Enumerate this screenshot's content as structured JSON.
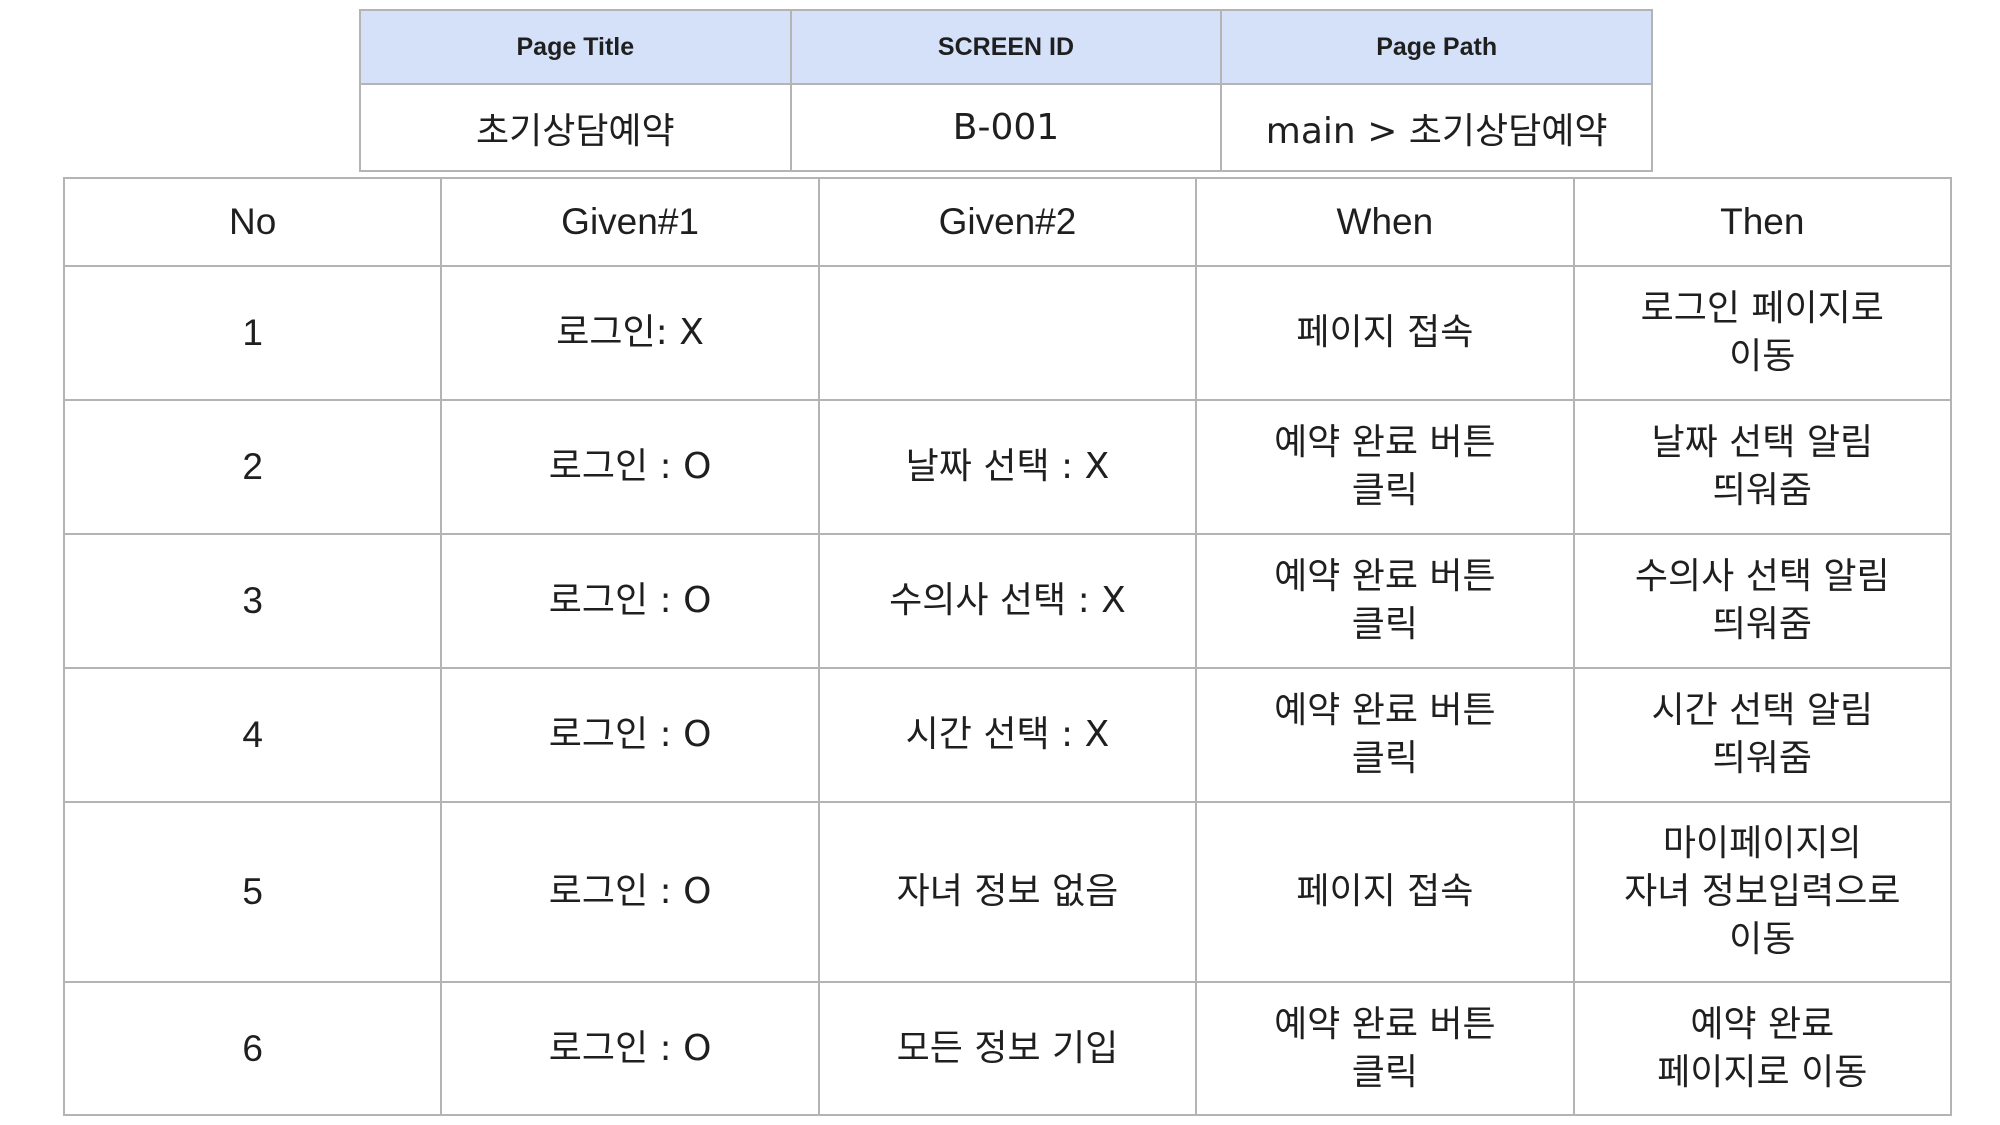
{
  "meta": {
    "headers": [
      "Page Title",
      "SCREEN ID",
      "Page Path"
    ],
    "values": [
      "초기상담예약",
      "B-001",
      "main > 초기상담예약"
    ]
  },
  "scenario_table": {
    "headers": [
      "No",
      "Given#1",
      "Given#2",
      "When",
      "Then"
    ],
    "rows": [
      {
        "no": "1",
        "given1": "로그인:  X",
        "given2": "",
        "when": "페이지 접속",
        "then": "로그인 페이지로\n이동"
      },
      {
        "no": "2",
        "given1": "로그인 : O",
        "given2": "날짜 선택 : X",
        "when": "예약 완료 버튼\n클릭",
        "then": "날짜 선택 알림\n띄워줌"
      },
      {
        "no": "3",
        "given1": "로그인 : O",
        "given2": "수의사 선택 : X",
        "when": "예약 완료 버튼\n클릭",
        "then": "수의사 선택 알림\n띄워줌"
      },
      {
        "no": "4",
        "given1": "로그인 : O",
        "given2": "시간 선택 : X",
        "when": "예약 완료 버튼\n클릭",
        "then": "시간 선택 알림\n띄워줌"
      },
      {
        "no": "5",
        "given1": "로그인 : O",
        "given2": "자녀 정보 없음",
        "when": "페이지 접속",
        "then": "마이페이지의\n자녀 정보입력으로\n이동"
      },
      {
        "no": "6",
        "given1": "로그인 : O",
        "given2": "모든 정보 기입",
        "when": "예약 완료 버튼\n클릭",
        "then": "예약 완료\n페이지로 이동"
      }
    ]
  }
}
